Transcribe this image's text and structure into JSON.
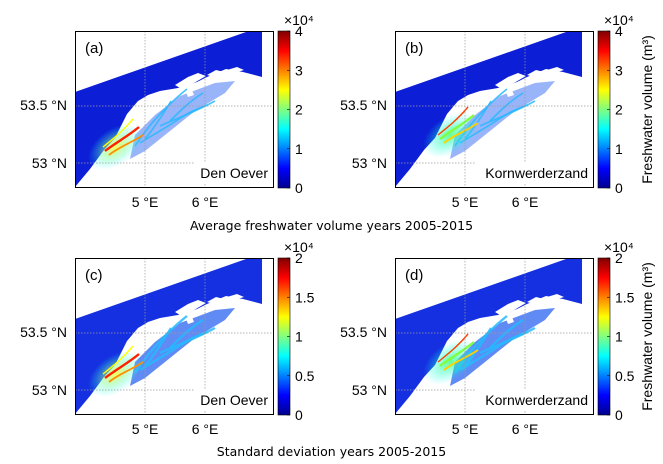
{
  "colormap": [
    "#00008f",
    "#0000ff",
    "#0080ff",
    "#00ffff",
    "#80ff80",
    "#ffff00",
    "#ff8000",
    "#ff0000",
    "#800000"
  ],
  "colors": {
    "land_mask": "#ffffff",
    "water_base": "#1a1ae6",
    "frame": "#000000",
    "grid": "#9a9a9a"
  },
  "axes": {
    "lat_ticks": [
      "53.5 °N",
      "53 °N"
    ],
    "lon_ticks": [
      "5 °E",
      "6 °E"
    ]
  },
  "captions": {
    "top": "Average freshwater volume years 2005-2015",
    "bottom": "Standard deviation years 2005-2015"
  },
  "colorbar_label": "Freshwater volume (m³)",
  "colorbars": [
    {
      "exponent": "×10⁴",
      "ticks": [
        "4",
        "3",
        "2",
        "1",
        "0"
      ],
      "values": [
        4,
        3,
        2,
        1,
        0
      ],
      "max": 4
    },
    {
      "exponent": "×10⁴",
      "ticks": [
        "2",
        "1.5",
        "1",
        "0.5",
        "0"
      ],
      "values": [
        2,
        1.5,
        1,
        0.5,
        0
      ],
      "max": 2
    }
  ],
  "panels": [
    {
      "id": "a",
      "tag": "(a)",
      "location": "Den Oever",
      "row": 0,
      "col": 0,
      "source": "den-oever"
    },
    {
      "id": "b",
      "tag": "(b)",
      "location": "Kornwerderzand",
      "row": 0,
      "col": 1,
      "source": "kornwerderzand"
    },
    {
      "id": "c",
      "tag": "(c)",
      "location": "Den Oever",
      "row": 1,
      "col": 0,
      "source": "den-oever"
    },
    {
      "id": "d",
      "tag": "(d)",
      "location": "Kornwerderzand",
      "row": 1,
      "col": 1,
      "source": "kornwerderzand"
    }
  ]
}
